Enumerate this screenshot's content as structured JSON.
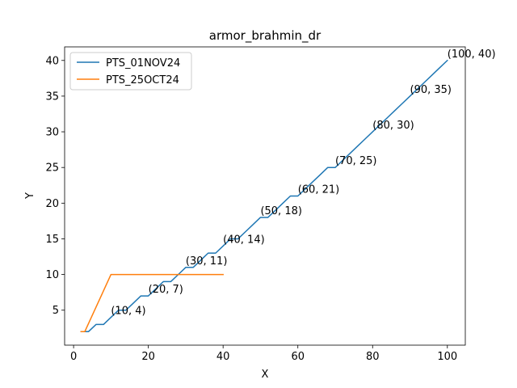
{
  "chart_data": {
    "type": "line",
    "title": "armor_brahmin_dr",
    "xlabel": "X",
    "ylabel": "Y",
    "xlim": [
      -2.4,
      104.8
    ],
    "ylim": [
      0.1,
      41.9
    ],
    "xticks": [
      0,
      20,
      40,
      60,
      80,
      100
    ],
    "yticks": [
      5,
      10,
      15,
      20,
      25,
      30,
      35,
      40
    ],
    "grid": false,
    "legend_position": "top-left",
    "series": [
      {
        "name": "PTS_01NOV24",
        "color": "#1f77b4",
        "x": [
          2,
          4,
          6,
          8,
          10,
          12,
          14,
          16,
          18,
          20,
          22,
          24,
          26,
          28,
          30,
          32,
          34,
          36,
          38,
          40,
          42,
          44,
          46,
          48,
          50,
          52,
          54,
          56,
          58,
          60,
          62,
          64,
          66,
          68,
          70,
          72,
          74,
          76,
          78,
          80,
          82,
          84,
          86,
          88,
          90,
          92,
          94,
          96,
          98,
          100
        ],
        "y": [
          2,
          2,
          3,
          3,
          4,
          5,
          5,
          6,
          7,
          7,
          8,
          9,
          9,
          10,
          11,
          11,
          12,
          13,
          13,
          14,
          15,
          15,
          16,
          17,
          18,
          18,
          19,
          20,
          21,
          21,
          22,
          23,
          24,
          25,
          25,
          26,
          27,
          28,
          29,
          30,
          31,
          32,
          33,
          34,
          35,
          36,
          37,
          38,
          39,
          40
        ]
      },
      {
        "name": "PTS_25OCT24",
        "color": "#ff7f0e",
        "x": [
          2,
          3,
          10,
          40
        ],
        "y": [
          2,
          2,
          10,
          10
        ]
      }
    ],
    "annotations": [
      {
        "text": "(10, 4)",
        "x": 10,
        "y": 4
      },
      {
        "text": "(20, 7)",
        "x": 20,
        "y": 7
      },
      {
        "text": "(30, 11)",
        "x": 30,
        "y": 11
      },
      {
        "text": "(40, 14)",
        "x": 40,
        "y": 14
      },
      {
        "text": "(50, 18)",
        "x": 50,
        "y": 18
      },
      {
        "text": "(60, 21)",
        "x": 60,
        "y": 21
      },
      {
        "text": "(70, 25)",
        "x": 70,
        "y": 25
      },
      {
        "text": "(80, 30)",
        "x": 80,
        "y": 30
      },
      {
        "text": "(90, 35)",
        "x": 90,
        "y": 35
      },
      {
        "text": "(100, 40)",
        "x": 100,
        "y": 40
      }
    ]
  }
}
